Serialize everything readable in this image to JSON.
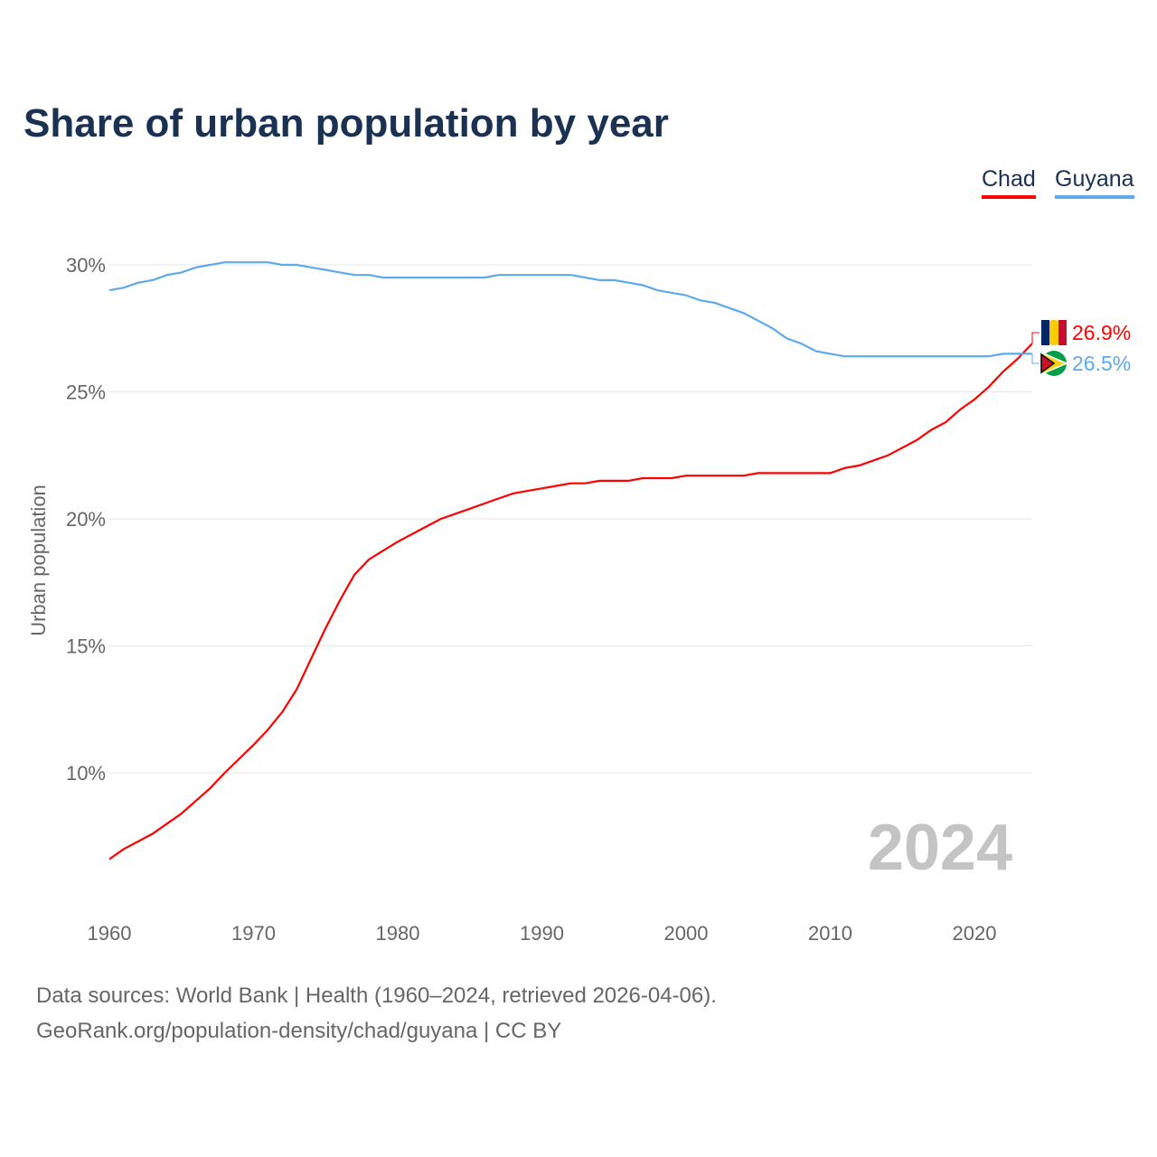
{
  "title": "Share of urban population by year",
  "legend": [
    {
      "name": "Chad",
      "color": "#ff0000"
    },
    {
      "name": "Guyana",
      "color": "#5ea8ec"
    }
  ],
  "year_watermark": "2024",
  "footer": {
    "line1": "Data sources: World Bank | Health (1960–2024, retrieved 2026-04-06).",
    "line2": "GeoRank.org/population-density/chad/guyana | CC BY"
  },
  "chart_data": {
    "type": "line",
    "title": "Share of urban population by year",
    "xlabel": "",
    "ylabel": "Urban population",
    "xlim": [
      1960,
      2024
    ],
    "ylim": [
      5.5,
      32
    ],
    "x_ticks": [
      1960,
      1970,
      1980,
      1990,
      2000,
      2010,
      2020
    ],
    "y_ticks": [
      10,
      15,
      20,
      25,
      30
    ],
    "y_tick_labels": [
      "10%",
      "15%",
      "20%",
      "25%",
      "30%"
    ],
    "grid": true,
    "legend_position": "top-right",
    "x": [
      1960,
      1961,
      1962,
      1963,
      1964,
      1965,
      1966,
      1967,
      1968,
      1969,
      1970,
      1971,
      1972,
      1973,
      1974,
      1975,
      1976,
      1977,
      1978,
      1979,
      1980,
      1981,
      1982,
      1983,
      1984,
      1985,
      1986,
      1987,
      1988,
      1989,
      1990,
      1991,
      1992,
      1993,
      1994,
      1995,
      1996,
      1997,
      1998,
      1999,
      2000,
      2001,
      2002,
      2003,
      2004,
      2005,
      2006,
      2007,
      2008,
      2009,
      2010,
      2011,
      2012,
      2013,
      2014,
      2015,
      2016,
      2017,
      2018,
      2019,
      2020,
      2021,
      2022,
      2023,
      2024
    ],
    "series": [
      {
        "name": "Chad",
        "color": "#ff0000",
        "end_label": "26.9%",
        "values": [
          6.6,
          7.0,
          7.3,
          7.6,
          8.0,
          8.4,
          8.9,
          9.4,
          10.0,
          10.55,
          11.1,
          11.7,
          12.4,
          13.3,
          14.5,
          15.7,
          16.8,
          17.8,
          18.4,
          18.75,
          19.1,
          19.4,
          19.7,
          20.0,
          20.2,
          20.4,
          20.6,
          20.8,
          21.0,
          21.1,
          21.2,
          21.3,
          21.4,
          21.4,
          21.5,
          21.5,
          21.5,
          21.6,
          21.6,
          21.6,
          21.7,
          21.7,
          21.7,
          21.7,
          21.7,
          21.8,
          21.8,
          21.8,
          21.8,
          21.8,
          21.8,
          22.0,
          22.1,
          22.3,
          22.5,
          22.8,
          23.1,
          23.5,
          23.8,
          24.3,
          24.7,
          25.2,
          25.8,
          26.3,
          26.9
        ]
      },
      {
        "name": "Guyana",
        "color": "#5ea8ec",
        "end_label": "26.5%",
        "values": [
          29.0,
          29.1,
          29.3,
          29.4,
          29.6,
          29.7,
          29.9,
          30.0,
          30.1,
          30.1,
          30.1,
          30.1,
          30.0,
          30.0,
          29.9,
          29.8,
          29.7,
          29.6,
          29.6,
          29.5,
          29.5,
          29.5,
          29.5,
          29.5,
          29.5,
          29.5,
          29.5,
          29.6,
          29.6,
          29.6,
          29.6,
          29.6,
          29.6,
          29.5,
          29.4,
          29.4,
          29.3,
          29.2,
          29.0,
          28.9,
          28.8,
          28.6,
          28.5,
          28.3,
          28.1,
          27.8,
          27.5,
          27.1,
          26.9,
          26.6,
          26.5,
          26.4,
          26.4,
          26.4,
          26.4,
          26.4,
          26.4,
          26.4,
          26.4,
          26.4,
          26.4,
          26.4,
          26.5,
          26.5,
          26.5
        ]
      }
    ]
  }
}
